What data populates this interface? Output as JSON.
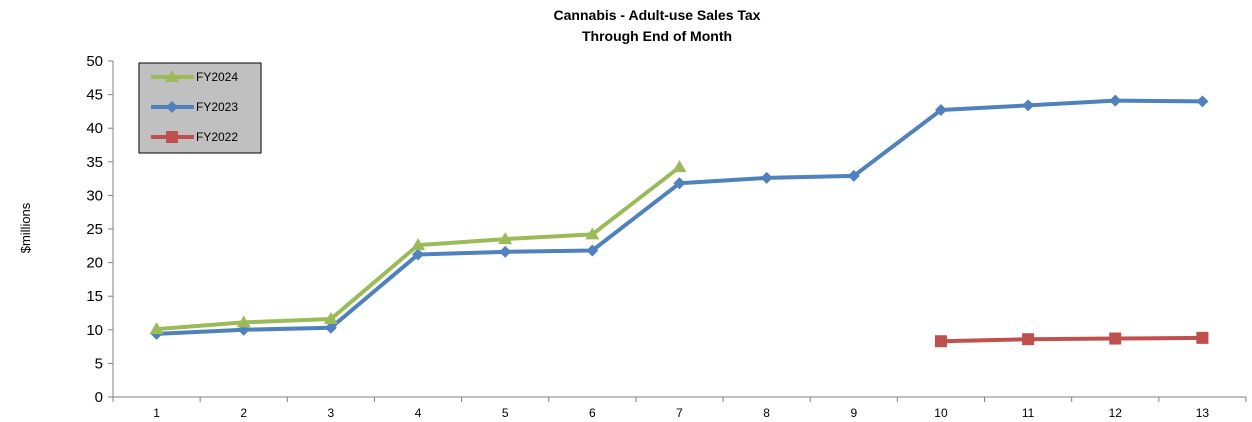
{
  "chart_data": {
    "type": "line",
    "title": "Cannabis - Adult-use Sales Tax",
    "subtitle": "Through End of Month",
    "ylabel": "$millions",
    "xlabel": "",
    "categories": [
      "1",
      "2",
      "3",
      "4",
      "5",
      "6",
      "7",
      "8",
      "9",
      "10",
      "11",
      "12",
      "13"
    ],
    "ylim": [
      0,
      50
    ],
    "yticks": [
      0,
      5,
      10,
      15,
      20,
      25,
      30,
      35,
      40,
      45,
      50
    ],
    "grid": false,
    "legend_position": "top-left",
    "legend_background": "#c0c0c0",
    "series": [
      {
        "name": "FY2024",
        "color": "#9bbb59",
        "marker": "triangle",
        "values": [
          10.1,
          11.1,
          11.6,
          22.6,
          23.5,
          24.2,
          34.2,
          null,
          null,
          null,
          null,
          null,
          null
        ]
      },
      {
        "name": "FY2023",
        "color": "#4f81bd",
        "marker": "diamond",
        "values": [
          9.4,
          10.0,
          10.3,
          21.2,
          21.6,
          21.8,
          31.8,
          32.6,
          32.9,
          42.7,
          43.4,
          44.1,
          44.0
        ]
      },
      {
        "name": "FY2022",
        "color": "#c0504d",
        "marker": "square",
        "values": [
          null,
          null,
          null,
          null,
          null,
          null,
          null,
          null,
          null,
          8.3,
          8.6,
          8.7,
          8.8
        ]
      }
    ]
  }
}
